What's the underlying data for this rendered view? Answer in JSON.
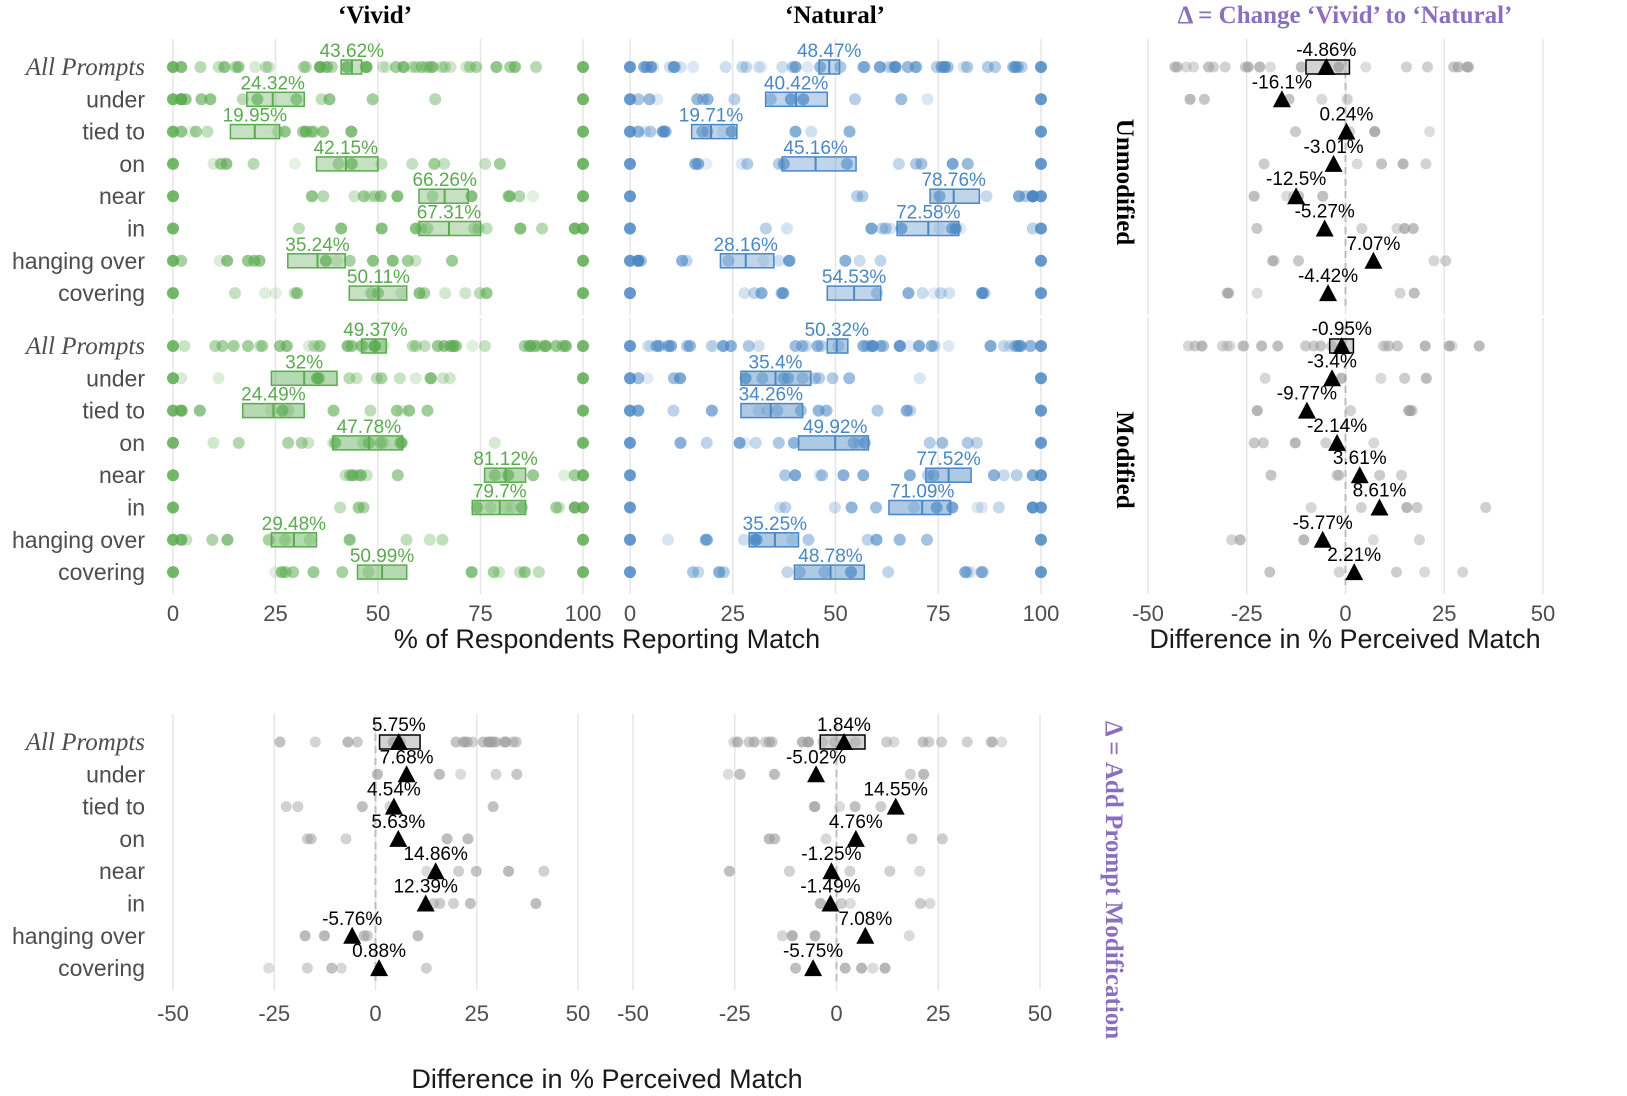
{
  "colors": {
    "vivid": "#5aaa4f",
    "natural": "#4a87c4",
    "delta_points": "#9e9e9e",
    "delta_marker": "#000000",
    "delta_title": "#8a6fbf"
  },
  "titles": {
    "vivid": "‘Vivid’",
    "natural": "‘Natural’",
    "delta_style": "Δ = Change ‘Vivid’ to ‘Natural’",
    "delta_modification": "Δ = Add Prompt Modification"
  },
  "facets": {
    "unmodified": "Unmodified",
    "modified": "Modified"
  },
  "axis_titles": {
    "percent": "% of Respondents Reporting Match",
    "difference_right": "Difference in % Perceived Match",
    "difference_bottom": "Difference in % Perceived Match"
  },
  "rows": [
    "All Prompts",
    "under",
    "tied to",
    "on",
    "near",
    "in",
    "hanging over",
    "covering"
  ],
  "ticks": {
    "percent": [
      "0",
      "25",
      "50",
      "75",
      "100"
    ],
    "difference": [
      "-50",
      "-25",
      "0",
      "25",
      "50"
    ]
  },
  "chart_data": [
    {
      "type": "scatter",
      "title": "‘Vivid’",
      "facet": "Unmodified",
      "xlabel": "% of Respondents Reporting Match",
      "xlim": [
        0,
        100
      ],
      "categories": [
        "All Prompts",
        "under",
        "tied to",
        "on",
        "near",
        "in",
        "hanging over",
        "covering"
      ],
      "means": [
        43.62,
        24.32,
        19.95,
        42.15,
        66.26,
        67.31,
        35.24,
        50.11
      ],
      "labels": [
        "43.62%",
        "24.32%",
        "19.95%",
        "42.15%",
        "66.26%",
        "67.31%",
        "35.24%",
        "50.11%"
      ],
      "ci_low": [
        41,
        18,
        14,
        35,
        60,
        60,
        28,
        43
      ],
      "ci_high": [
        46,
        32,
        26,
        50,
        72,
        75,
        42,
        57
      ]
    },
    {
      "type": "scatter",
      "title": "‘Natural’",
      "facet": "Unmodified",
      "xlabel": "% of Respondents Reporting Match",
      "xlim": [
        0,
        100
      ],
      "categories": [
        "All Prompts",
        "under",
        "tied to",
        "on",
        "near",
        "in",
        "hanging over",
        "covering"
      ],
      "means": [
        48.47,
        40.42,
        19.71,
        45.16,
        78.76,
        72.58,
        28.16,
        54.53
      ],
      "labels": [
        "48.47%",
        "40.42%",
        "19.71%",
        "45.16%",
        "78.76%",
        "72.58%",
        "28.16%",
        "54.53%"
      ],
      "ci_low": [
        46,
        33,
        15,
        37,
        73,
        65,
        22,
        48
      ],
      "ci_high": [
        51,
        48,
        26,
        55,
        85,
        80,
        35,
        61
      ]
    },
    {
      "type": "scatter",
      "title": "‘Vivid’",
      "facet": "Modified",
      "xlabel": "% of Respondents Reporting Match",
      "xlim": [
        0,
        100
      ],
      "categories": [
        "All Prompts",
        "under",
        "tied to",
        "on",
        "near",
        "in",
        "hanging over",
        "covering"
      ],
      "means": [
        49.37,
        32,
        24.49,
        47.78,
        81.12,
        79.7,
        29.48,
        50.99
      ],
      "labels": [
        "49.37%",
        "32%",
        "24.49%",
        "47.78%",
        "81.12%",
        "79.7%",
        "29.48%",
        "50.99%"
      ],
      "ci_low": [
        46,
        24,
        17,
        39,
        76,
        73,
        24,
        45
      ],
      "ci_high": [
        52,
        40,
        32,
        56,
        86,
        86,
        35,
        57
      ]
    },
    {
      "type": "scatter",
      "title": "‘Natural’",
      "facet": "Modified",
      "xlabel": "% of Respondents Reporting Match",
      "xlim": [
        0,
        100
      ],
      "categories": [
        "All Prompts",
        "under",
        "tied to",
        "on",
        "near",
        "in",
        "hanging over",
        "covering"
      ],
      "means": [
        50.32,
        35.4,
        34.26,
        49.92,
        77.52,
        71.09,
        35.25,
        48.78
      ],
      "labels": [
        "50.32%",
        "35.4%",
        "34.26%",
        "49.92%",
        "77.52%",
        "71.09%",
        "35.25%",
        "48.78%"
      ],
      "ci_low": [
        48,
        27,
        27,
        41,
        72,
        63,
        29,
        40
      ],
      "ci_high": [
        53,
        44,
        42,
        58,
        83,
        78,
        41,
        57
      ]
    },
    {
      "type": "scatter",
      "title": "Δ = Change ‘Vivid’ to ‘Natural’",
      "facet": "Unmodified",
      "xlabel": "Difference in % Perceived Match",
      "xlim": [
        -50,
        50
      ],
      "categories": [
        "All Prompts",
        "under",
        "tied to",
        "on",
        "near",
        "in",
        "hanging over",
        "covering"
      ],
      "values": [
        -4.86,
        -16.1,
        0.24,
        -3.01,
        -12.5,
        -5.27,
        7.07,
        -4.42
      ],
      "labels": [
        "-4.86%",
        "-16.1%",
        "0.24%",
        "-3.01%",
        "-12.5%",
        "-5.27%",
        "7.07%",
        "-4.42%"
      ],
      "box_low": -10,
      "box_high": 1
    },
    {
      "type": "scatter",
      "title": "Δ = Change ‘Vivid’ to ‘Natural’",
      "facet": "Modified",
      "xlabel": "Difference in % Perceived Match",
      "xlim": [
        -50,
        50
      ],
      "categories": [
        "All Prompts",
        "under",
        "tied to",
        "on",
        "near",
        "in",
        "hanging over",
        "covering"
      ],
      "values": [
        -0.95,
        -3.4,
        -9.77,
        -2.14,
        3.61,
        8.61,
        -5.77,
        2.21
      ],
      "labels": [
        "-0.95%",
        "-3.4%",
        "-9.77%",
        "-2.14%",
        "3.61%",
        "8.61%",
        "-5.77%",
        "2.21%"
      ],
      "box_low": -4,
      "box_high": 2
    },
    {
      "type": "scatter",
      "title": "Δ = Add Prompt Modification",
      "series": "‘Vivid’",
      "xlabel": "Difference in % Perceived Match",
      "xlim": [
        -50,
        50
      ],
      "categories": [
        "All Prompts",
        "under",
        "tied to",
        "on",
        "near",
        "in",
        "hanging over",
        "covering"
      ],
      "values": [
        5.75,
        7.68,
        4.54,
        5.63,
        14.86,
        12.39,
        -5.76,
        0.88
      ],
      "labels": [
        "5.75%",
        "7.68%",
        "4.54%",
        "5.63%",
        "14.86%",
        "12.39%",
        "-5.76%",
        "0.88%"
      ],
      "box_low": 1,
      "box_high": 11
    },
    {
      "type": "scatter",
      "title": "Δ = Add Prompt Modification",
      "series": "‘Natural’",
      "xlabel": "Difference in % Perceived Match",
      "xlim": [
        -50,
        50
      ],
      "categories": [
        "All Prompts",
        "under",
        "tied to",
        "on",
        "near",
        "in",
        "hanging over",
        "covering"
      ],
      "values": [
        1.84,
        -5.02,
        14.55,
        4.76,
        -1.25,
        -1.49,
        7.08,
        -5.75
      ],
      "labels": [
        "1.84%",
        "-5.02%",
        "14.55%",
        "4.76%",
        "-1.25%",
        "-1.49%",
        "7.08%",
        "-5.75%"
      ],
      "box_low": -4,
      "box_high": 7
    }
  ]
}
